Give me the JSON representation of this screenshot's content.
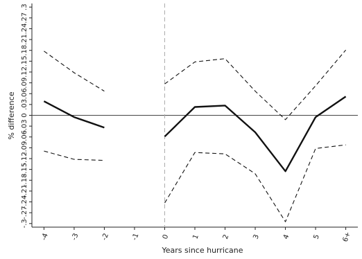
{
  "chart_data": {
    "type": "line",
    "xlabel": "Years since hurricane",
    "ylabel": "% difference",
    "x_ticks": [
      {
        "value": -4,
        "label": "-4"
      },
      {
        "value": -3,
        "label": "-3"
      },
      {
        "value": -2,
        "label": "-2"
      },
      {
        "value": -1,
        "label": "-1"
      },
      {
        "value": 0,
        "label": "0"
      },
      {
        "value": 1,
        "label": "1"
      },
      {
        "value": 2,
        "label": "2"
      },
      {
        "value": 3,
        "label": "3"
      },
      {
        "value": 4,
        "label": "4"
      },
      {
        "value": 5,
        "label": "5"
      },
      {
        "value": 6,
        "label": "6+"
      }
    ],
    "y_ticks": [
      {
        "value": -0.3,
        "label": "-.3"
      },
      {
        "value": -0.27,
        "label": "-.27"
      },
      {
        "value": -0.24,
        "label": "-.24"
      },
      {
        "value": -0.21,
        "label": "-.21"
      },
      {
        "value": -0.18,
        "label": "-.18"
      },
      {
        "value": -0.15,
        "label": "-.15"
      },
      {
        "value": -0.12,
        "label": "-.12"
      },
      {
        "value": -0.09,
        "label": "-.09"
      },
      {
        "value": -0.06,
        "label": "-.06"
      },
      {
        "value": -0.03,
        "label": "-.03"
      },
      {
        "value": 0,
        "label": "0"
      },
      {
        "value": 0.03,
        "label": ".03"
      },
      {
        "value": 0.06,
        "label": ".06"
      },
      {
        "value": 0.09,
        "label": ".09"
      },
      {
        "value": 0.12,
        "label": ".12"
      },
      {
        "value": 0.15,
        "label": ".15"
      },
      {
        "value": 0.18,
        "label": ".18"
      },
      {
        "value": 0.21,
        "label": ".21"
      },
      {
        "value": 0.24,
        "label": ".24"
      },
      {
        "value": 0.27,
        "label": ".27"
      },
      {
        "value": 0.3,
        "label": ".3"
      }
    ],
    "xlim": [
      -4.4,
      6.4
    ],
    "ylim": [
      -0.31,
      0.31
    ],
    "reference_lines": {
      "horizontal_y": 0,
      "vertical_x": 0
    },
    "series": [
      {
        "role": "estimate",
        "segments": [
          {
            "x": [
              -4,
              -3,
              -2
            ],
            "y": [
              0.039,
              -0.005,
              -0.034
            ]
          },
          {
            "x": [
              0,
              1,
              2,
              3,
              4,
              5,
              6
            ],
            "y": [
              -0.059,
              0.023,
              0.027,
              -0.047,
              -0.155,
              -0.005,
              0.052
            ]
          }
        ]
      },
      {
        "role": "upper_bound",
        "segments": [
          {
            "x": [
              -4,
              -3,
              -2
            ],
            "y": [
              0.178,
              0.118,
              0.067
            ]
          },
          {
            "x": [
              0,
              1,
              2,
              3,
              4,
              5,
              6
            ],
            "y": [
              0.087,
              0.148,
              0.157,
              0.067,
              -0.012,
              0.082,
              0.181
            ]
          }
        ]
      },
      {
        "role": "lower_bound",
        "segments": [
          {
            "x": [
              -4,
              -3,
              -2
            ],
            "y": [
              -0.099,
              -0.122,
              -0.125
            ]
          },
          {
            "x": [
              0,
              1,
              2,
              3,
              4,
              5,
              6
            ],
            "y": [
              -0.243,
              -0.103,
              -0.107,
              -0.162,
              -0.295,
              -0.092,
              -0.082
            ]
          }
        ]
      }
    ],
    "style": {
      "line_color": "#111111",
      "reference_color": "#444444",
      "vertical_ref_color": "#aaaaaa",
      "background": "#ffffff"
    }
  }
}
